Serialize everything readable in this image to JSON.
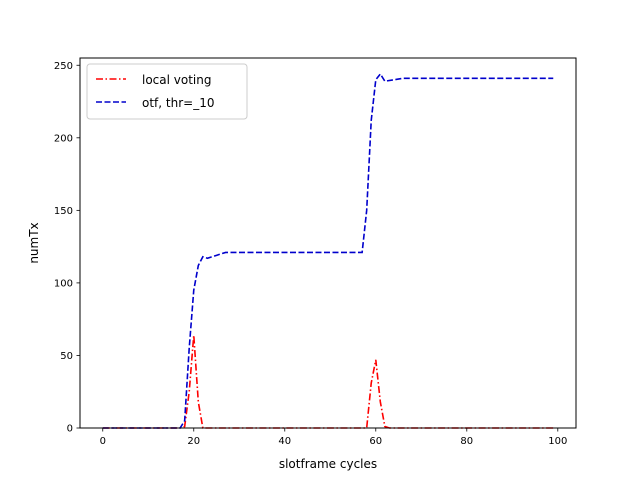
{
  "chart_data": {
    "type": "line",
    "xlabel": "slotframe cycles",
    "ylabel": "numTx",
    "xlim": [
      -5,
      104
    ],
    "ylim": [
      0,
      255
    ],
    "xticks": [
      0,
      20,
      40,
      60,
      80,
      100
    ],
    "yticks": [
      0,
      50,
      100,
      150,
      200,
      250
    ],
    "grid": false,
    "legend_position": "upper-left",
    "series": [
      {
        "name": "local voting",
        "color": "#ff0000",
        "style": "dashdot",
        "x": [
          0,
          17,
          18,
          19,
          20,
          21,
          22,
          23,
          57,
          58,
          59,
          60,
          61,
          62,
          63,
          99
        ],
        "y": [
          0,
          0,
          1,
          25,
          64,
          18,
          0,
          0,
          0,
          0,
          31,
          47,
          18,
          1,
          0,
          0
        ]
      },
      {
        "name": "otf, thr=_10",
        "color": "#0000cc",
        "style": "dashed",
        "x": [
          0,
          17,
          18,
          19,
          20,
          21,
          22,
          23,
          24,
          25,
          27,
          30,
          40,
          50,
          57,
          58,
          59,
          60,
          61,
          62,
          64,
          66,
          68,
          70,
          80,
          99
        ],
        "y": [
          0,
          0,
          5,
          55,
          95,
          112,
          118,
          117,
          118,
          119,
          121,
          121,
          121,
          121,
          121,
          150,
          212,
          240,
          244,
          239,
          240,
          241,
          241,
          241,
          241,
          241
        ]
      }
    ]
  }
}
